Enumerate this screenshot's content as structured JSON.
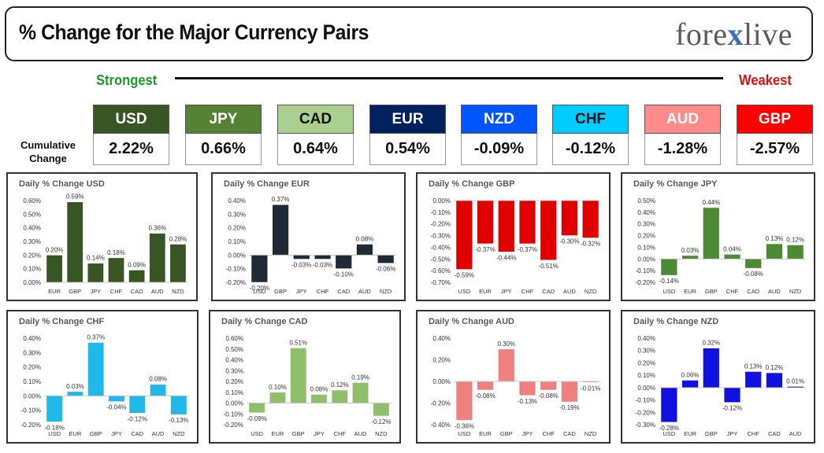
{
  "header": {
    "title": "% Change for the Major Currency Pairs",
    "logo_left": "fore",
    "logo_x": "x",
    "logo_right": "live"
  },
  "legend": {
    "strongest": "Strongest",
    "weakest": "Weakest",
    "cumulative_line1": "Cumulative",
    "cumulative_line2": "Change"
  },
  "currencies": [
    {
      "code": "USD",
      "value": "2.22%",
      "bg": "#375623",
      "fg": "#ffffff"
    },
    {
      "code": "JPY",
      "value": "0.66%",
      "bg": "#548235",
      "fg": "#ffffff"
    },
    {
      "code": "CAD",
      "value": "0.64%",
      "bg": "#a9d08e",
      "fg": "#111111"
    },
    {
      "code": "EUR",
      "value": "0.54%",
      "bg": "#002060",
      "fg": "#ffffff"
    },
    {
      "code": "NZD",
      "value": "-0.09%",
      "bg": "#0055ff",
      "fg": "#ffffff"
    },
    {
      "code": "CHF",
      "value": "-0.12%",
      "bg": "#00ccff",
      "fg": "#111111"
    },
    {
      "code": "AUD",
      "value": "-1.28%",
      "bg": "#ff8a8a",
      "fg": "#ffffff"
    },
    {
      "code": "GBP",
      "value": "-2.57%",
      "bg": "#ff0000",
      "fg": "#ffffff"
    }
  ],
  "chart_data": [
    {
      "type": "bar",
      "title": "Daily % Change USD",
      "categories": [
        "EUR",
        "GBP",
        "JPY",
        "CHF",
        "CAD",
        "AUD",
        "NZD"
      ],
      "values": [
        0.2,
        0.59,
        0.14,
        0.18,
        0.09,
        0.36,
        0.28
      ],
      "labels": [
        "0.20%",
        "0.59%",
        "0.14%",
        "0.18%",
        "0.09%",
        "0.36%",
        "0.28%"
      ],
      "ylim": [
        0,
        0.6
      ],
      "yticks": [
        0,
        0.1,
        0.2,
        0.3,
        0.4,
        0.5,
        0.6
      ],
      "ytick_labels": [
        "0.00%",
        "0.10%",
        "0.20%",
        "0.30%",
        "0.40%",
        "0.50%",
        "0.60%"
      ],
      "color": "#375623"
    },
    {
      "type": "bar",
      "title": "Daily % Change EUR",
      "categories": [
        "USD",
        "GBP",
        "JPY",
        "CHF",
        "CAD",
        "AUD",
        "NZD"
      ],
      "values": [
        -0.2,
        0.37,
        -0.03,
        -0.03,
        -0.1,
        0.08,
        -0.06
      ],
      "labels": [
        "-0.20%",
        "0.37%",
        "-0.03%",
        "-0.03%",
        "-0.10%",
        "0.08%",
        "-0.06%"
      ],
      "ylim": [
        -0.2,
        0.4
      ],
      "yticks": [
        -0.2,
        -0.1,
        0,
        0.1,
        0.2,
        0.3,
        0.4
      ],
      "ytick_labels": [
        "-0.20%",
        "-0.10%",
        "0.00%",
        "0.10%",
        "0.20%",
        "0.30%",
        "0.40%"
      ],
      "color": "#1f2a36"
    },
    {
      "type": "bar",
      "title": "Daily % Change GBP",
      "categories": [
        "USD",
        "EUR",
        "JPY",
        "CHF",
        "CAD",
        "AUD",
        "NZD"
      ],
      "values": [
        -0.59,
        -0.37,
        -0.44,
        -0.37,
        -0.51,
        -0.3,
        -0.32
      ],
      "labels": [
        "-0.59%",
        "-0.37%",
        "-0.44%",
        "-0.37%",
        "-0.51%",
        "-0.30%",
        "-0.32%"
      ],
      "ylim": [
        -0.7,
        0
      ],
      "yticks": [
        -0.7,
        -0.6,
        -0.5,
        -0.4,
        -0.3,
        -0.2,
        -0.1,
        0
      ],
      "ytick_labels": [
        "-0.70%",
        "-0.60%",
        "-0.50%",
        "-0.40%",
        "-0.30%",
        "-0.20%",
        "-0.10%",
        "0.00%"
      ],
      "color": "#e00000"
    },
    {
      "type": "bar",
      "title": "Daily % Change JPY",
      "categories": [
        "USD",
        "EUR",
        "GBP",
        "CHF",
        "CAD",
        "AUD",
        "NZD"
      ],
      "values": [
        -0.14,
        0.03,
        0.44,
        0.04,
        -0.08,
        0.13,
        0.12
      ],
      "labels": [
        "-0.14%",
        "0.03%",
        "0.44%",
        "0.04%",
        "-0.08%",
        "0.13%",
        "0.12%"
      ],
      "ylim": [
        -0.2,
        0.5
      ],
      "yticks": [
        -0.2,
        -0.1,
        0,
        0.1,
        0.2,
        0.3,
        0.4,
        0.5
      ],
      "ytick_labels": [
        "-0.20%",
        "-0.10%",
        "0.00%",
        "0.10%",
        "0.20%",
        "0.30%",
        "0.40%",
        "0.50%"
      ],
      "color": "#4e8a34"
    },
    {
      "type": "bar",
      "title": "Daily % Change CHF",
      "categories": [
        "USD",
        "EUR",
        "GBP",
        "JPY",
        "CAD",
        "AUD",
        "NZD"
      ],
      "values": [
        -0.18,
        0.03,
        0.37,
        -0.04,
        -0.12,
        0.08,
        -0.13
      ],
      "labels": [
        "-0.18%",
        "0.03%",
        "0.37%",
        "-0.04%",
        "-0.12%",
        "0.08%",
        "-0.13%"
      ],
      "ylim": [
        -0.2,
        0.4
      ],
      "yticks": [
        -0.2,
        -0.1,
        0,
        0.1,
        0.2,
        0.3,
        0.4
      ],
      "ytick_labels": [
        "-0.20%",
        "-0.10%",
        "0.00%",
        "0.10%",
        "0.20%",
        "0.30%",
        "0.40%"
      ],
      "color": "#1fb8e8"
    },
    {
      "type": "bar",
      "title": "Daily % Change CAD",
      "categories": [
        "USD",
        "EUR",
        "GBP",
        "JPY",
        "CHF",
        "AUD",
        "NZD"
      ],
      "values": [
        -0.09,
        0.1,
        0.51,
        0.08,
        0.12,
        0.19,
        -0.12
      ],
      "labels": [
        "-0.09%",
        "0.10%",
        "0.51%",
        "0.08%",
        "0.12%",
        "0.19%",
        "-0.12%"
      ],
      "ylim": [
        -0.2,
        0.6
      ],
      "yticks": [
        -0.2,
        -0.1,
        0,
        0.1,
        0.2,
        0.3,
        0.4,
        0.5,
        0.6
      ],
      "ytick_labels": [
        "-0.20%",
        "-0.10%",
        "0.00%",
        "0.10%",
        "0.20%",
        "0.30%",
        "0.40%",
        "0.50%",
        "0.60%"
      ],
      "color": "#8fbf6a"
    },
    {
      "type": "bar",
      "title": "Daily % Change AUD",
      "categories": [
        "USD",
        "EUR",
        "GBP",
        "JPY",
        "CHF",
        "CAD",
        "NZD"
      ],
      "values": [
        -0.36,
        -0.08,
        0.3,
        -0.13,
        -0.08,
        -0.19,
        -0.01
      ],
      "labels": [
        "-0.36%",
        "-0.08%",
        "0.30%",
        "-0.13%",
        "-0.08%",
        "-0.19%",
        "-0.01%"
      ],
      "ylim": [
        -0.4,
        0.4
      ],
      "yticks": [
        -0.4,
        -0.2,
        0,
        0.2,
        0.4
      ],
      "ytick_labels": [
        "-0.40%",
        "-0.20%",
        "0.00%",
        "0.20%",
        "0.40%"
      ],
      "color": "#f08080"
    },
    {
      "type": "bar",
      "title": "Daily % Change NZD",
      "categories": [
        "USD",
        "EUR",
        "GBP",
        "JPY",
        "CHF",
        "CAD",
        "AUD"
      ],
      "values": [
        -0.28,
        0.06,
        0.32,
        -0.12,
        0.13,
        0.12,
        0.01
      ],
      "labels": [
        "-0.28%",
        "0.06%",
        "0.32%",
        "-0.12%",
        "0.13%",
        "0.12%",
        "0.01%"
      ],
      "ylim": [
        -0.3,
        0.4
      ],
      "yticks": [
        -0.3,
        -0.2,
        -0.1,
        0,
        0.1,
        0.2,
        0.3,
        0.4
      ],
      "ytick_labels": [
        "-0.30%",
        "-0.20%",
        "-0.10%",
        "0.00%",
        "0.10%",
        "0.20%",
        "0.30%",
        "0.40%"
      ],
      "color": "#1010e0"
    }
  ]
}
